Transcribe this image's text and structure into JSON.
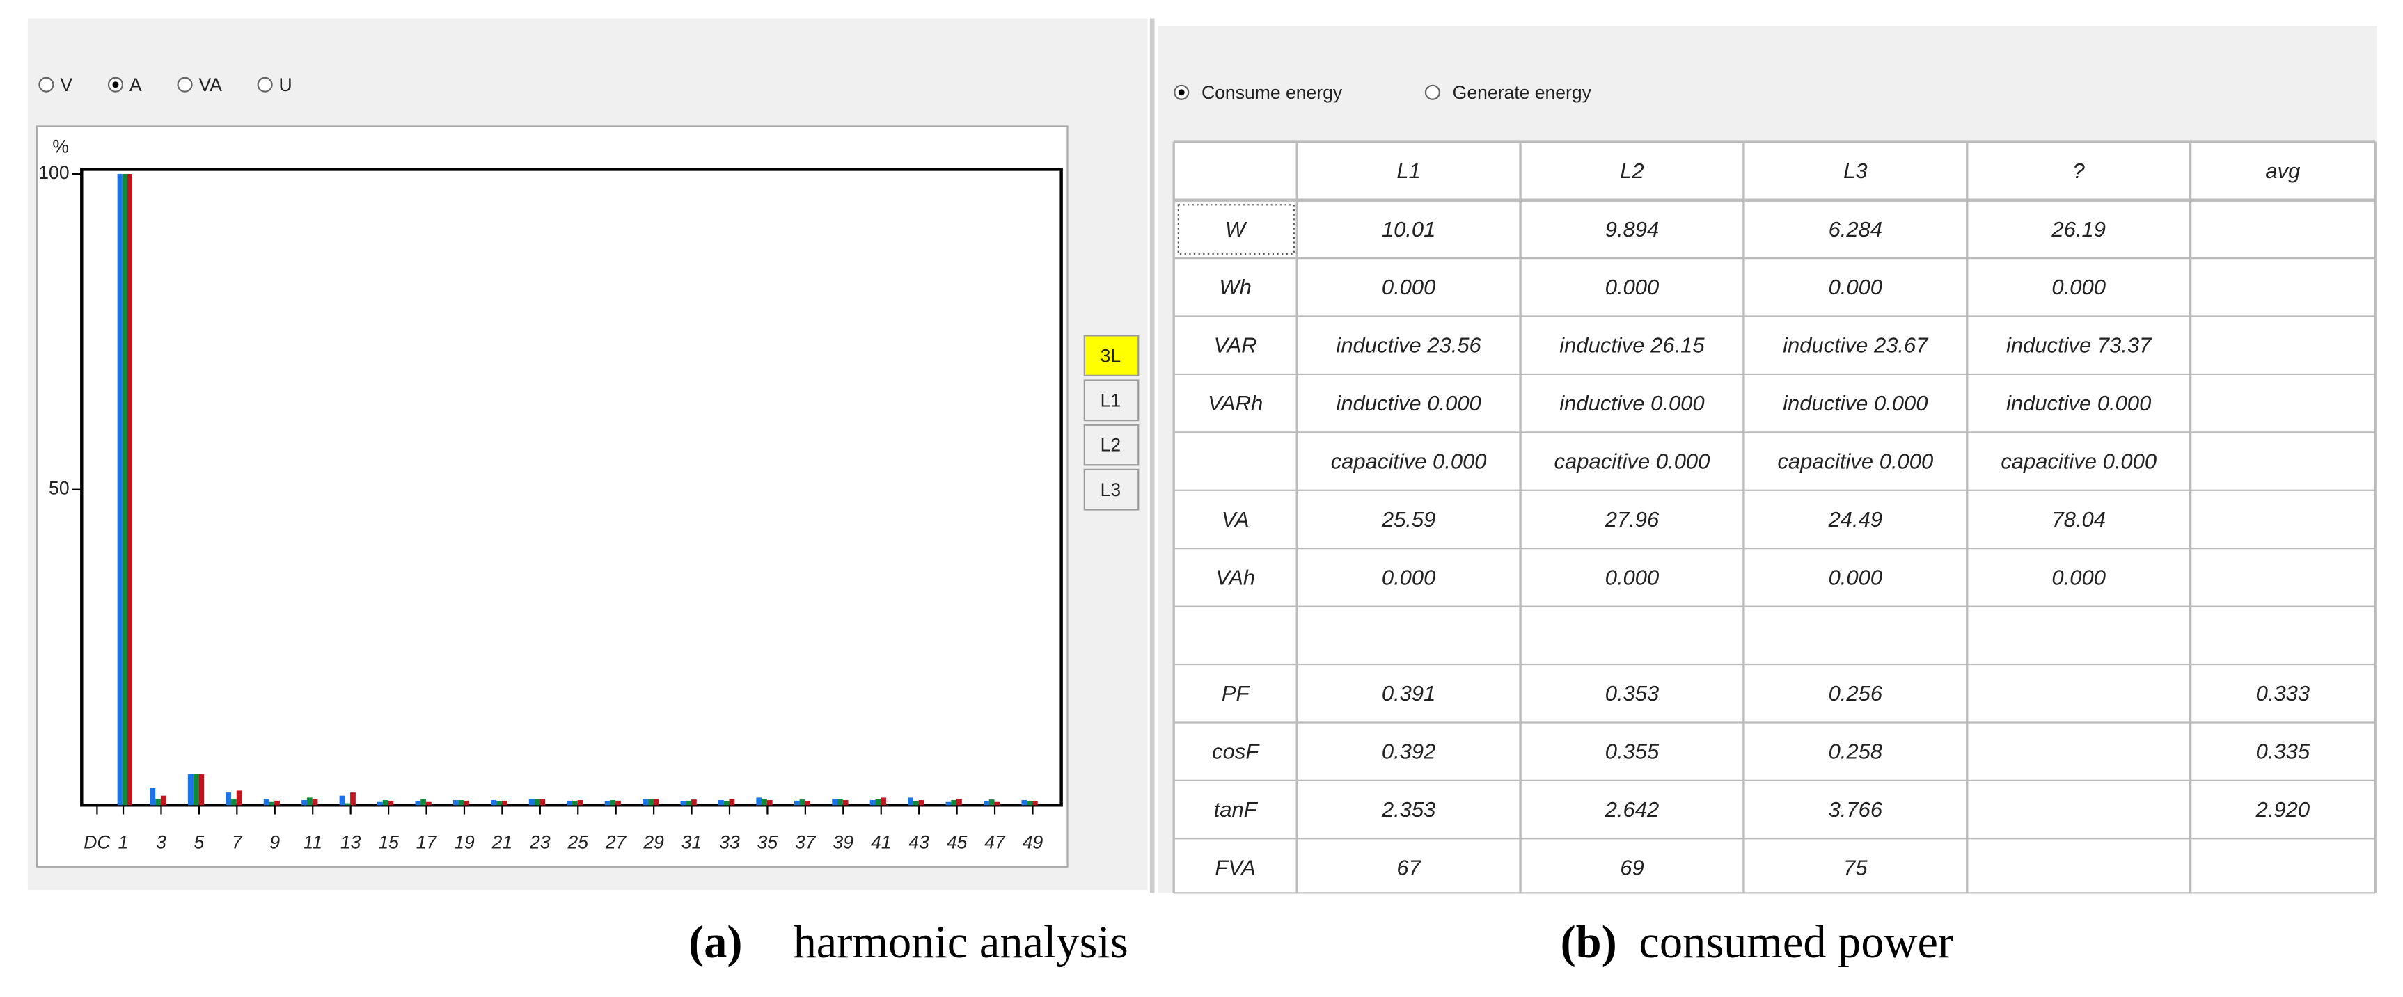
{
  "left_panel": {
    "radio_options": [
      {
        "label": "V",
        "selected": false
      },
      {
        "label": "A",
        "selected": true
      },
      {
        "label": "VA",
        "selected": false
      },
      {
        "label": "U",
        "selected": false
      }
    ],
    "buttons": [
      {
        "label": "3L",
        "active": true
      },
      {
        "label": "L1",
        "active": false
      },
      {
        "label": "L2",
        "active": false
      },
      {
        "label": "L3",
        "active": false
      }
    ],
    "caption_label": "(a)",
    "caption_text": "harmonic analysis"
  },
  "chart_data": {
    "type": "bar",
    "y_label": "%",
    "categories": [
      "DC",
      "1",
      "3",
      "5",
      "7",
      "9",
      "11",
      "13",
      "15",
      "17",
      "19",
      "21",
      "23",
      "25",
      "27",
      "29",
      "31",
      "33",
      "35",
      "37",
      "39",
      "41",
      "43",
      "45",
      "47",
      "49"
    ],
    "series": [
      {
        "color": "#1a73e8",
        "values": [
          0,
          100,
          2.7,
          4.9,
          2.0,
          1.0,
          0.8,
          1.5,
          0.5,
          0.6,
          0.8,
          0.8,
          1.0,
          0.6,
          0.6,
          1.0,
          0.6,
          0.8,
          1.2,
          0.7,
          1.0,
          0.8,
          1.2,
          0.5,
          0.6,
          0.8
        ]
      },
      {
        "color": "#0f8a3c",
        "values": [
          0,
          100,
          1.0,
          4.9,
          1.0,
          0.5,
          1.2,
          0.3,
          0.8,
          1.0,
          0.8,
          0.6,
          1.0,
          0.7,
          0.8,
          1.0,
          0.7,
          0.6,
          1.0,
          0.9,
          1.0,
          1.0,
          0.6,
          0.8,
          0.9,
          0.7
        ]
      },
      {
        "color": "#c0141e",
        "values": [
          0,
          100,
          1.5,
          4.9,
          2.3,
          0.7,
          1.0,
          2.0,
          0.7,
          0.5,
          0.7,
          0.7,
          1.0,
          0.8,
          0.7,
          1.0,
          0.9,
          1.0,
          0.8,
          0.6,
          0.8,
          1.2,
          0.8,
          1.0,
          0.5,
          0.6
        ]
      }
    ],
    "ylim": [
      0,
      100
    ],
    "yticks": [
      50,
      100
    ],
    "grid": false
  },
  "right_panel": {
    "radio_options": [
      {
        "label": "Consume energy",
        "selected": true
      },
      {
        "label": "Generate energy",
        "selected": false
      }
    ],
    "table": {
      "header": [
        null,
        "L1",
        "L2",
        "L3",
        "?",
        "avg"
      ],
      "rows": [
        [
          "W",
          "10.01",
          "9.894",
          "6.284",
          "26.19",
          null
        ],
        [
          "Wh",
          "0.000",
          "0.000",
          "0.000",
          "0.000",
          null
        ],
        [
          "VAR",
          "inductive 23.56",
          "inductive 26.15",
          "inductive 23.67",
          "inductive 73.37",
          null
        ],
        [
          "VARh",
          "inductive 0.000",
          "inductive 0.000",
          "inductive 0.000",
          "inductive 0.000",
          null
        ],
        [
          null,
          "capacitive 0.000",
          "capacitive 0.000",
          "capacitive 0.000",
          "capacitive 0.000",
          null
        ],
        [
          "VA",
          "25.59",
          "27.96",
          "24.49",
          "78.04",
          null
        ],
        [
          "VAh",
          "0.000",
          "0.000",
          "0.000",
          "0.000",
          null
        ],
        [
          null,
          null,
          null,
          null,
          null,
          null
        ],
        [
          "PF",
          "0.391",
          "0.353",
          "0.256",
          null,
          "0.333"
        ],
        [
          "cosF",
          "0.392",
          "0.355",
          "0.258",
          null,
          "0.335"
        ],
        [
          "tanF",
          "2.353",
          "2.642",
          "3.766",
          null,
          "2.920"
        ],
        [
          "FVA",
          "67",
          "69",
          "75",
          null,
          null
        ]
      ]
    },
    "caption_label": "(b)",
    "caption_text": "consumed power"
  }
}
